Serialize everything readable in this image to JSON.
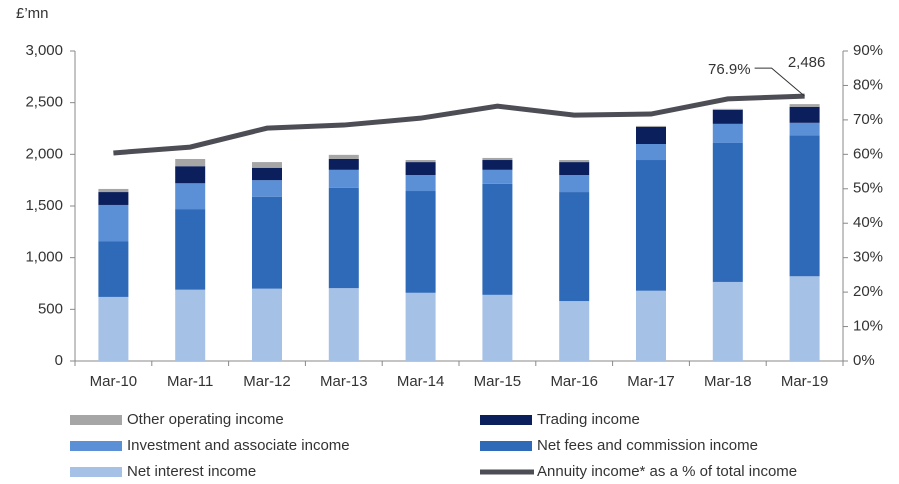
{
  "chart_data": {
    "type": "stacked-bar-line",
    "ylabel": "£’mn",
    "categories": [
      "Mar-10",
      "Mar-11",
      "Mar-12",
      "Mar-13",
      "Mar-14",
      "Mar-15",
      "Mar-16",
      "Mar-17",
      "Mar-18",
      "Mar-19"
    ],
    "series": [
      {
        "name": "Net interest income",
        "color": "#a6c1e6",
        "values": [
          620,
          690,
          700,
          705,
          660,
          640,
          580,
          680,
          765,
          820
        ]
      },
      {
        "name": "Net fees and commission income",
        "color": "#2f6ab8",
        "values": [
          540,
          780,
          890,
          970,
          985,
          1075,
          1055,
          1265,
          1345,
          1365
        ]
      },
      {
        "name": "Investment and associate income",
        "color": "#5b8fd6",
        "values": [
          350,
          250,
          160,
          175,
          155,
          135,
          165,
          155,
          185,
          120
        ]
      },
      {
        "name": "Trading income",
        "color": "#0a1f5c",
        "values": [
          125,
          165,
          120,
          105,
          125,
          95,
          125,
          165,
          135,
          155
        ]
      },
      {
        "name": "Other operating income",
        "color": "#a6a6a6",
        "values": [
          30,
          70,
          55,
          40,
          20,
          20,
          20,
          10,
          10,
          26
        ]
      },
      {
        "name": "Annuity income* as a % of total income",
        "color": "#4d4d55",
        "axis": "y2",
        "kind": "line",
        "values": [
          60.4,
          62.1,
          67.6,
          68.5,
          70.5,
          74.0,
          71.4,
          71.7,
          76.1,
          76.9
        ],
        "value_labels": [
          null,
          null,
          null,
          null,
          null,
          null,
          null,
          null,
          null,
          "76.9%"
        ]
      }
    ],
    "total_labels": [
      null,
      null,
      null,
      null,
      null,
      null,
      null,
      null,
      null,
      "2,486"
    ],
    "ylim": [
      0,
      3000
    ],
    "yticks": [
      0,
      500,
      {
        "value": 1000,
        "label": "1,000"
      },
      {
        "value": 1500,
        "label": "1,500"
      },
      {
        "value": 2000,
        "label": "2,000"
      },
      {
        "value": 2500,
        "label": "2,500"
      },
      {
        "value": 3000,
        "label": "3,000"
      }
    ],
    "y2lim": [
      0,
      90
    ],
    "y2ticks": [
      {
        "value": 0,
        "label": "0%"
      },
      {
        "value": 10,
        "label": "10%"
      },
      {
        "value": 20,
        "label": "20%"
      },
      {
        "value": 30,
        "label": "30%"
      },
      {
        "value": 40,
        "label": "40%"
      },
      {
        "value": 50,
        "label": "50%"
      },
      {
        "value": 60,
        "label": "60%"
      },
      {
        "value": 70,
        "label": "70%"
      },
      {
        "value": 80,
        "label": "80%"
      },
      {
        "value": 90,
        "label": "90%"
      }
    ],
    "legend": "bottom"
  }
}
